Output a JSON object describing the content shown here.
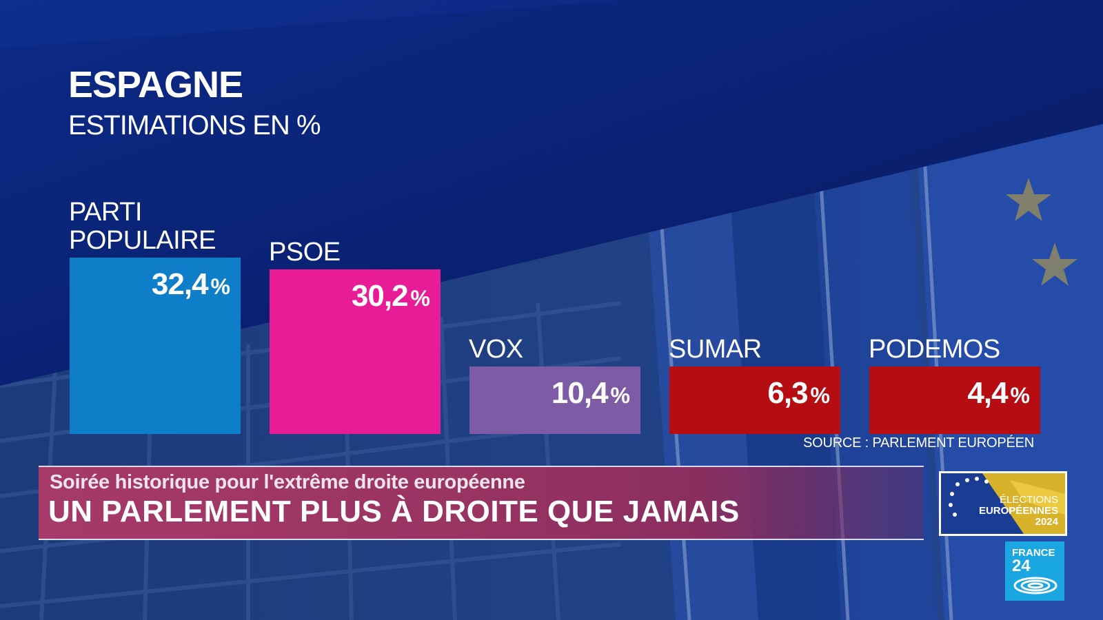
{
  "header": {
    "title": "ESPAGNE",
    "subtitle": "ESTIMATIONS EN %"
  },
  "chart_data": {
    "type": "bar",
    "title": "ESPAGNE",
    "subtitle": "ESTIMATIONS EN %",
    "categories": [
      "PARTI\nPOPULAIRE",
      "PSOE",
      "VOX",
      "SUMAR",
      "PODEMOS"
    ],
    "values": [
      32.4,
      30.2,
      10.4,
      6.3,
      4.4
    ],
    "value_labels": [
      "32,4",
      "30,2",
      "10,4",
      "6,3",
      "4,4"
    ],
    "unit": "%",
    "colors": [
      "#0d7ec7",
      "#e81c96",
      "#7e5ba5",
      "#b50d12",
      "#b50d12"
    ],
    "source": "SOURCE : PARLEMENT EUROPÉEN",
    "xlabel": "",
    "ylabel": ""
  },
  "banner": {
    "subtitle": "Soirée historique pour l'extrême droite européenne",
    "headline": "UN PARLEMENT PLUS À DROITE QUE JAMAIS"
  },
  "logos": {
    "elections_line1": "ÉLECTIONS",
    "elections_line2": "EUROPÉENNES",
    "elections_line3": "2024",
    "channel_line1": "FRANCE",
    "channel_line2": "24"
  }
}
